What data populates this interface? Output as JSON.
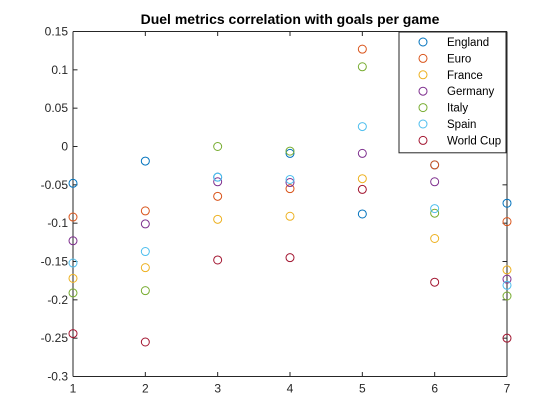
{
  "chart_data": {
    "type": "scatter",
    "title": "Duel metrics correlation with goals per game",
    "xlabel": "",
    "ylabel": "",
    "xlim": [
      1,
      7
    ],
    "ylim": [
      -0.3,
      0.15
    ],
    "xticks": [
      1,
      2,
      3,
      4,
      5,
      6,
      7
    ],
    "yticks": [
      -0.3,
      -0.25,
      -0.2,
      -0.15,
      -0.1,
      -0.05,
      0,
      0.05,
      0.1,
      0.15
    ],
    "xtick_labels": [
      "1",
      "2",
      "3",
      "4",
      "5",
      "6",
      "7"
    ],
    "ytick_labels": [
      "-0.3",
      "-0.25",
      "-0.2",
      "-0.15",
      "-0.1",
      "-0.05",
      "0",
      "0.05",
      "0.1",
      "0.15"
    ],
    "grid": false,
    "legend_position": "top-right",
    "marker": "open-circle",
    "series": [
      {
        "name": "England",
        "color": "#0072BD",
        "x": [
          1,
          2,
          3,
          4,
          5,
          6,
          7
        ],
        "y": [
          -0.048,
          -0.019,
          -0.04,
          -0.009,
          -0.088,
          -0.024,
          -0.074
        ]
      },
      {
        "name": "Euro",
        "color": "#D95319",
        "x": [
          1,
          2,
          3,
          4,
          5,
          6,
          7
        ],
        "y": [
          -0.092,
          -0.084,
          -0.065,
          -0.055,
          0.127,
          -0.024,
          -0.098
        ]
      },
      {
        "name": "France",
        "color": "#EDB120",
        "x": [
          1,
          2,
          3,
          4,
          5,
          6,
          7
        ],
        "y": [
          -0.172,
          -0.158,
          -0.095,
          -0.091,
          -0.042,
          -0.12,
          -0.161
        ]
      },
      {
        "name": "Germany",
        "color": "#7E2F8E",
        "x": [
          1,
          2,
          3,
          4,
          5,
          6,
          7
        ],
        "y": [
          -0.123,
          -0.101,
          -0.046,
          -0.047,
          -0.009,
          -0.046,
          -0.173
        ]
      },
      {
        "name": "Italy",
        "color": "#77AC30",
        "x": [
          1,
          2,
          3,
          4,
          5,
          6,
          7
        ],
        "y": [
          -0.191,
          -0.188,
          0.0,
          -0.006,
          0.104,
          -0.087,
          -0.195
        ]
      },
      {
        "name": "Spain",
        "color": "#4DBEEE",
        "x": [
          1,
          2,
          3,
          4,
          5,
          6,
          7
        ],
        "y": [
          -0.152,
          -0.137,
          -0.04,
          -0.043,
          0.026,
          -0.081,
          -0.181
        ]
      },
      {
        "name": "World Cup",
        "color": "#A2142F",
        "x": [
          1,
          2,
          3,
          4,
          5,
          6,
          7
        ],
        "y": [
          -0.244,
          -0.255,
          -0.148,
          -0.145,
          -0.056,
          -0.177,
          -0.25
        ]
      }
    ]
  }
}
